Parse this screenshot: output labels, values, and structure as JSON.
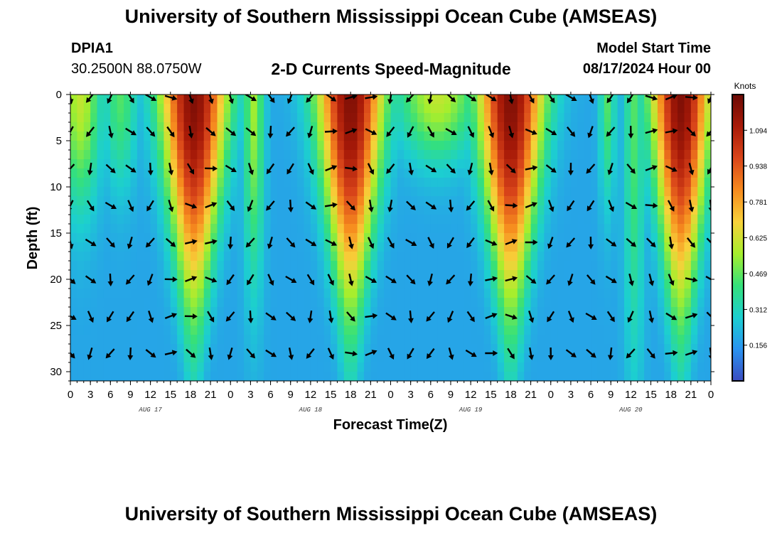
{
  "header": {
    "title": "University of Southern Mississippi Ocean Cube (AMSEAS)",
    "station_id": "DPIA1",
    "station_coords": "30.2500N  88.0750W",
    "chart_title": "2-D Currents Speed-Magnitude",
    "model_start_label": "Model Start Time",
    "model_start_value": "08/17/2024 Hour 00"
  },
  "footer": {
    "title": "University of Southern Mississippi Ocean Cube (AMSEAS)"
  },
  "chart_data": {
    "type": "heatmap",
    "title": "2-D Currents Speed-Magnitude",
    "xlabel": "Forecast Time(Z)",
    "ylabel": "Depth (ft)",
    "x_range_hours": [
      0,
      96
    ],
    "y_range": [
      0,
      31
    ],
    "y_inverted": true,
    "x_tick_labels": [
      "0",
      "3",
      "6",
      "9",
      "12",
      "15",
      "18",
      "21",
      "0",
      "3",
      "6",
      "9",
      "12",
      "15",
      "18",
      "21",
      "0",
      "3",
      "6",
      "9",
      "12",
      "15",
      "18",
      "21",
      "0",
      "3",
      "6",
      "9",
      "12",
      "15",
      "18",
      "21",
      "0"
    ],
    "x_tick_hours": [
      0,
      3,
      6,
      9,
      12,
      15,
      18,
      21,
      24,
      27,
      30,
      33,
      36,
      39,
      42,
      45,
      48,
      51,
      54,
      57,
      60,
      63,
      66,
      69,
      72,
      75,
      78,
      81,
      84,
      87,
      90,
      93,
      96
    ],
    "y_ticks": [
      0,
      5,
      10,
      15,
      20,
      25,
      30
    ],
    "date_labels": [
      {
        "label": "AUG 17",
        "hour": 12
      },
      {
        "label": "AUG 18",
        "hour": 36
      },
      {
        "label": "AUG 19",
        "hour": 60
      },
      {
        "label": "AUG 20",
        "hour": 84
      }
    ],
    "colorbar": {
      "unit": "Knots",
      "min": 0,
      "max": 1.25,
      "ticks": [
        "1.094",
        "0.938",
        "0.781",
        "0.625",
        "0.469",
        "0.312",
        "0.156"
      ],
      "tick_values": [
        1.094,
        0.938,
        0.781,
        0.625,
        0.469,
        0.312,
        0.156
      ],
      "colors": [
        "#3b4cc0",
        "#2a93f0",
        "#1ccfd0",
        "#35e07a",
        "#a6ee2d",
        "#f8d13a",
        "#f68a1e",
        "#d9451a",
        "#a81a08",
        "#6b0a05"
      ]
    },
    "speed_peaks": [
      {
        "hour": 1.5,
        "speed": 0.6,
        "halfwidth_surface": 3,
        "halfwidth_bottom": 2.5,
        "decay_depth": 12
      },
      {
        "hour": 7.5,
        "speed": 0.45,
        "halfwidth_surface": 2.5,
        "halfwidth_bottom": 2,
        "decay_depth": 10
      },
      {
        "hour": 18.5,
        "speed": 1.2,
        "halfwidth_surface": 5,
        "halfwidth_bottom": 1.5,
        "decay_depth": 22
      },
      {
        "hour": 27.5,
        "speed": 0.55,
        "halfwidth_surface": 1.5,
        "halfwidth_bottom": 1.5,
        "decay_depth": 20
      },
      {
        "hour": 42.0,
        "speed": 1.2,
        "halfwidth_surface": 5,
        "halfwidth_bottom": 1.5,
        "decay_depth": 22
      },
      {
        "hour": 55.0,
        "speed": 0.6,
        "halfwidth_surface": 6,
        "halfwidth_bottom": 3,
        "decay_depth": 7
      },
      {
        "hour": 66.0,
        "speed": 1.2,
        "halfwidth_surface": 5,
        "halfwidth_bottom": 1.5,
        "decay_depth": 22
      },
      {
        "hour": 80.5,
        "speed": 0.45,
        "halfwidth_surface": 1.2,
        "halfwidth_bottom": 1.2,
        "decay_depth": 12
      },
      {
        "hour": 84.5,
        "speed": 0.45,
        "halfwidth_surface": 1.5,
        "halfwidth_bottom": 1.5,
        "decay_depth": 30
      },
      {
        "hour": 91.5,
        "speed": 1.2,
        "halfwidth_surface": 4.5,
        "halfwidth_bottom": 1.5,
        "decay_depth": 22
      }
    ],
    "background_speed": 0.18,
    "arrow_depths": [
      0,
      4,
      8,
      12,
      16,
      20,
      24,
      28
    ],
    "arrow_hours": [
      0,
      3,
      6,
      9,
      12,
      15,
      18,
      21,
      24,
      27,
      30,
      33,
      36,
      39,
      42,
      45,
      48,
      51,
      54,
      57,
      60,
      63,
      66,
      69,
      72,
      75,
      78,
      81,
      84,
      87,
      90,
      93,
      96
    ]
  }
}
